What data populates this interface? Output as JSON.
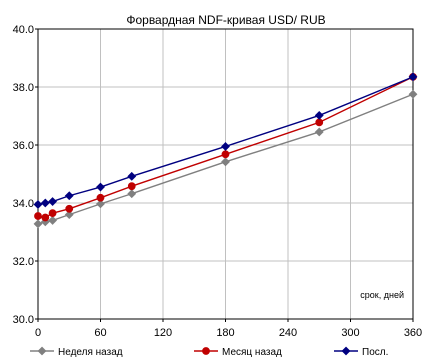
{
  "chart_data": {
    "type": "line",
    "title": "Форвардная NDF-кривая USD/ RUB",
    "xlabel": "срок, дней",
    "ylabel": "",
    "x": [
      0,
      7,
      14,
      30,
      60,
      90,
      180,
      270,
      360
    ],
    "xlim": [
      0,
      360
    ],
    "ylim": [
      30.0,
      40.0
    ],
    "x_ticks": [
      "0",
      "60",
      "120",
      "180",
      "240",
      "300",
      "360"
    ],
    "y_ticks": [
      "30.0",
      "32.0",
      "34.0",
      "36.0",
      "38.0",
      "40.0"
    ],
    "grid": true,
    "legend_position": "bottom",
    "series": [
      {
        "name": "Неделя назад",
        "color": "#808080",
        "marker": "diamond",
        "values": [
          33.28,
          33.35,
          33.4,
          33.6,
          33.97,
          34.32,
          35.42,
          36.45,
          37.75
        ]
      },
      {
        "name": "Месяц назад",
        "color": "#c00000",
        "marker": "circle",
        "values": [
          33.55,
          33.5,
          33.65,
          33.8,
          34.18,
          34.58,
          35.68,
          36.78,
          38.35
        ]
      },
      {
        "name": "Посл.",
        "color": "#000080",
        "marker": "diamond",
        "values": [
          33.95,
          34.0,
          34.05,
          34.25,
          34.55,
          34.92,
          35.95,
          37.02,
          38.35
        ]
      }
    ]
  }
}
